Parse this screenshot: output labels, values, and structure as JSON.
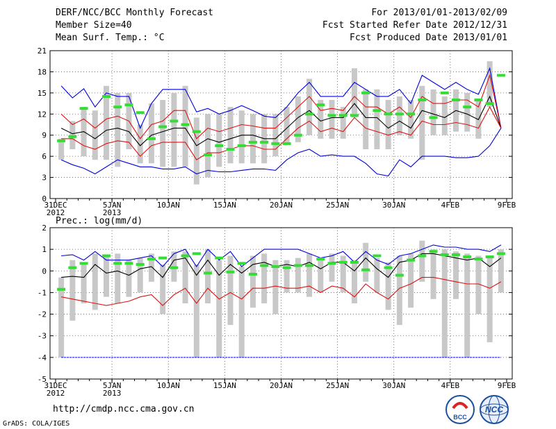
{
  "header": {
    "left": [
      "DERF/NCC/BCC Monthly Forecast",
      "Member Size=40",
      "Mean Surf. Temp.: °C"
    ],
    "right": [
      "For 2013/01/01-2013/02/09",
      "Fcst Started Refer Date 2012/12/31",
      "Fcst Produced Date 2013/01/01"
    ]
  },
  "footer": {
    "url": "http://cmdp.ncc.cma.gov.cn",
    "grads": "GrADS: COLA/IGES"
  },
  "logos": {
    "bcc": "BCC",
    "ncc": "NCC"
  },
  "colors": {
    "box": "#c8c8c8",
    "obs": "#33dd33",
    "mean": "#000000",
    "inner": "#dd1111",
    "outer": "#0000dd",
    "grid": "#555555"
  },
  "chart_data": [
    {
      "type": "line",
      "title": "Mean Surf. Temp.: °C",
      "x_tick_labels": [
        "31DEC",
        "5JAN",
        "10JAN",
        "15JAN",
        "20JAN",
        "25JAN",
        "30JAN",
        "4FEB",
        "9FEB"
      ],
      "x_tick_sublabels": [
        "2012",
        "2013",
        "",
        "",
        "",
        "",
        "",
        "",
        ""
      ],
      "ylim": [
        0,
        21
      ],
      "yticks": [
        "0",
        "3",
        "6",
        "9",
        "12",
        "15",
        "18",
        "21"
      ],
      "days": [
        1,
        2,
        3,
        4,
        5,
        6,
        7,
        8,
        9,
        10,
        11,
        12,
        13,
        14,
        15,
        16,
        17,
        18,
        19,
        20,
        21,
        22,
        23,
        24,
        25,
        26,
        27,
        28,
        29,
        30,
        31,
        32,
        33,
        34,
        35,
        36,
        37,
        38,
        39,
        40
      ],
      "series": [
        {
          "name": "ensemble max",
          "values": [
            16,
            14.3,
            15.6,
            13,
            15,
            14.5,
            14.5,
            10,
            13.5,
            15.5,
            15.5,
            15.5,
            12.3,
            12.8,
            12,
            12.5,
            13.2,
            12.5,
            11.7,
            11.5,
            13,
            15,
            16.5,
            14.5,
            14.5,
            14.5,
            16.5,
            15.5,
            14.5,
            14.5,
            15.5,
            13.5,
            17.5,
            16.5,
            15.5,
            16.5,
            15.5,
            14.8,
            18.5,
            10
          ]
        },
        {
          "name": "upper band",
          "values": [
            12,
            10.5,
            11.3,
            10,
            11.3,
            11.7,
            11,
            8.5,
            10.5,
            11,
            12.5,
            12.5,
            8.5,
            10,
            9.5,
            10,
            10.5,
            10.3,
            10,
            10,
            11.5,
            13,
            14.5,
            12.5,
            12.8,
            12.5,
            14.5,
            13,
            13,
            12,
            13,
            11.5,
            14.5,
            13.5,
            13.5,
            14,
            14,
            13,
            17.5,
            10
          ]
        },
        {
          "name": "ensemble mean",
          "values": [
            10,
            9.2,
            9.5,
            8.5,
            9.7,
            10,
            9.5,
            7.5,
            9,
            9.5,
            10,
            10,
            7.5,
            8.5,
            8,
            8.5,
            9,
            9,
            8.5,
            8.5,
            10,
            11.5,
            12.5,
            11,
            11.5,
            11.5,
            13.5,
            11.5,
            11.5,
            10,
            11,
            10,
            12.5,
            12,
            11.5,
            12.5,
            12,
            11.2,
            14.5,
            10
          ]
        },
        {
          "name": "lower band",
          "values": [
            8.5,
            8.5,
            7.5,
            7,
            7.8,
            8.2,
            8,
            6,
            7.5,
            8,
            8,
            8,
            5.5,
            6.5,
            6.5,
            7,
            7.5,
            7.5,
            7,
            7,
            8.5,
            10,
            11,
            9.5,
            10,
            9.5,
            11.5,
            10,
            9.5,
            9,
            9.5,
            9,
            11,
            10.5,
            10.5,
            10.8,
            10.5,
            10,
            13,
            10
          ]
        },
        {
          "name": "ensemble min",
          "values": [
            5.5,
            4.8,
            4.3,
            3.5,
            4.5,
            5.5,
            5,
            4.5,
            4.5,
            4.2,
            4.2,
            4.5,
            3.5,
            4,
            3.8,
            3.8,
            4,
            4.2,
            4.2,
            4,
            5.5,
            6.5,
            7,
            6,
            6.2,
            6,
            6,
            5,
            3.5,
            3.2,
            5.5,
            4.5,
            6,
            6,
            6,
            5.8,
            5.8,
            6,
            7.5,
            10
          ]
        }
      ],
      "boxes": [
        [
          5.5,
          8.5
        ],
        [
          7,
          11
        ],
        [
          6,
          13
        ],
        [
          5.5,
          12.5
        ],
        [
          5.5,
          16
        ],
        [
          4.5,
          15
        ],
        [
          7,
          15
        ],
        [
          5,
          10.5
        ],
        [
          5,
          13.5
        ],
        [
          4.5,
          14
        ],
        [
          4.5,
          15
        ],
        [
          4.5,
          16
        ],
        [
          2,
          11.5
        ],
        [
          3,
          12
        ],
        [
          4.5,
          12
        ],
        [
          5,
          13
        ],
        [
          5,
          12.5
        ],
        [
          5,
          12
        ],
        [
          5,
          12
        ],
        [
          6,
          12
        ],
        [
          8,
          13
        ],
        [
          8,
          14.5
        ],
        [
          9,
          17
        ],
        [
          8.5,
          14
        ],
        [
          8.5,
          14
        ],
        [
          8.5,
          13
        ],
        [
          11.5,
          18.5
        ],
        [
          7,
          15.5
        ],
        [
          7,
          15.5
        ],
        [
          7,
          14
        ],
        [
          9,
          14.5
        ],
        [
          8.5,
          14
        ],
        [
          5.5,
          16
        ],
        [
          9,
          15.5
        ],
        [
          9,
          14.5
        ],
        [
          9.5,
          15.5
        ],
        [
          9.5,
          15
        ],
        [
          8.5,
          14
        ],
        [
          13,
          19.5
        ],
        [
          10,
          10
        ]
      ],
      "obs": [
        8.2,
        8.8,
        12.8,
        null,
        14.5,
        13,
        13.3,
        12.2,
        8.5,
        10.2,
        11,
        10.5,
        9.5,
        6.2,
        7.5,
        7,
        7.5,
        8,
        8,
        7.8,
        7.8,
        9,
        12,
        13.3,
        11.8,
        11.8,
        11.8,
        15,
        12.5,
        12,
        12,
        12,
        14,
        11.5,
        15,
        14,
        13,
        14,
        13.5,
        17.5
      ]
    },
    {
      "type": "line",
      "title": "Prec.: log(mm/d)",
      "x_tick_labels": [
        "31DEC",
        "5JAN",
        "10JAN",
        "15JAN",
        "20JAN",
        "25JAN",
        "30JAN",
        "4FEB",
        "9FEB"
      ],
      "x_tick_sublabels": [
        "2012",
        "2013",
        "",
        "",
        "",
        "",
        "",
        "",
        ""
      ],
      "ylim": [
        -5,
        2
      ],
      "yticks": [
        "-5",
        "-4",
        "-3",
        "-2",
        "-1",
        "0",
        "1",
        "2"
      ],
      "days": [
        1,
        2,
        3,
        4,
        5,
        6,
        7,
        8,
        9,
        10,
        11,
        12,
        13,
        14,
        15,
        16,
        17,
        18,
        19,
        20,
        21,
        22,
        23,
        24,
        25,
        26,
        27,
        28,
        29,
        30,
        31,
        32,
        33,
        34,
        35,
        36,
        37,
        38,
        39,
        40
      ],
      "series": [
        {
          "name": "ensemble max",
          "values": [
            0.7,
            0.75,
            0.5,
            0.9,
            0.5,
            0.5,
            0.5,
            0.6,
            0.7,
            0.2,
            0.8,
            1,
            0.2,
            1,
            0.5,
            0.9,
            0.2,
            0.6,
            1,
            1,
            1,
            1,
            0.8,
            0.6,
            0.7,
            0.9,
            0.4,
            0.9,
            0.5,
            0.3,
            0.7,
            0.8,
            1,
            1.2,
            1.1,
            1.1,
            1,
            1,
            0.9,
            1.2
          ]
        },
        {
          "name": "ensemble mean",
          "values": [
            -0.3,
            -0.25,
            -0.3,
            0.3,
            -0.1,
            0,
            -0.2,
            0.1,
            0.2,
            -0.3,
            0.5,
            0.6,
            -0.2,
            0.5,
            -0.2,
            0.3,
            -0.1,
            0.3,
            0.4,
            0.2,
            0.3,
            0.2,
            0.4,
            0.1,
            0.4,
            0.4,
            0,
            0.6,
            0.1,
            -0.3,
            0.4,
            0.5,
            0.8,
            0.8,
            0.7,
            0.6,
            0.5,
            0.6,
            0.2,
            0.6
          ]
        },
        {
          "name": "lower band",
          "values": [
            -1.2,
            -1.3,
            -1.4,
            -1.5,
            -1.6,
            -1.5,
            -1.4,
            -1.2,
            -1.1,
            -1.6,
            -1.1,
            -0.8,
            -1.5,
            -0.8,
            -1.3,
            -1,
            -1.3,
            -0.8,
            -0.8,
            -0.7,
            -0.8,
            -0.8,
            -0.7,
            -1,
            -0.7,
            -0.8,
            -1.2,
            -0.6,
            -1,
            -1.3,
            -0.8,
            -0.6,
            -0.3,
            -0.3,
            -0.4,
            -0.5,
            -0.6,
            -0.6,
            -0.8,
            -0.5
          ]
        },
        {
          "name": "ensemble min",
          "values": [
            -4,
            -4,
            -4,
            -4,
            -4,
            -4,
            -4,
            -4,
            -4,
            -4,
            -4,
            -4,
            -4,
            -4,
            -4,
            -4,
            -4,
            -4,
            -4,
            -4,
            -4,
            -4,
            -4,
            -4,
            -4,
            -4,
            -4,
            -4,
            -4,
            -4,
            -4,
            -4,
            -4,
            -4,
            -4,
            -4,
            -4,
            -4,
            -4,
            -4
          ]
        }
      ],
      "boxes": [
        [
          -4,
          -0.3
        ],
        [
          -2.3,
          0.5
        ],
        [
          -1.5,
          0.4
        ],
        [
          -1.8,
          0.8
        ],
        [
          -1.2,
          0.7
        ],
        [
          -1.5,
          0.8
        ],
        [
          -1.2,
          0.5
        ],
        [
          -1,
          0.6
        ],
        [
          -0.5,
          0.8
        ],
        [
          -2,
          0.3
        ],
        [
          -0.5,
          0.9
        ],
        [
          -1.5,
          0.9
        ],
        [
          -4,
          0.3
        ],
        [
          -1.5,
          1
        ],
        [
          -4,
          0.5
        ],
        [
          -2.5,
          0.7
        ],
        [
          -4,
          0.2
        ],
        [
          -1.7,
          0.7
        ],
        [
          -1.5,
          0.8
        ],
        [
          -2,
          0.5
        ],
        [
          -1,
          0.5
        ],
        [
          -1,
          0.6
        ],
        [
          -1.2,
          0.8
        ],
        [
          -1,
          0.5
        ],
        [
          -0.5,
          0.8
        ],
        [
          -1,
          0.7
        ],
        [
          -1.5,
          0.5
        ],
        [
          -0.5,
          1.3
        ],
        [
          -1,
          0.6
        ],
        [
          -1.8,
          0.4
        ],
        [
          -2.5,
          0.7
        ],
        [
          -1.7,
          0.8
        ],
        [
          -0.5,
          1.4
        ],
        [
          -1.3,
          1
        ],
        [
          -4,
          1
        ],
        [
          -1.3,
          0.9
        ],
        [
          -4,
          0.8
        ],
        [
          -2,
          0.7
        ],
        [
          -3.3,
          0.7
        ],
        [
          -1,
          1
        ]
      ],
      "obs": [
        -0.85,
        0.15,
        0.35,
        null,
        0.7,
        0.35,
        0.35,
        0.3,
        0.55,
        0.6,
        0.15,
        0.7,
        0.8,
        -0.1,
        0.6,
        -0.05,
        0.35,
        -0.15,
        0.25,
        0.2,
        0.15,
        0.25,
        0.25,
        0.55,
        0.35,
        0.4,
        0.4,
        0.05,
        0.7,
        0.15,
        -0.2,
        0.5,
        0.7,
        0.9,
        0.75,
        0.75,
        0.65,
        0.55,
        0.65,
        0.8
      ]
    }
  ]
}
